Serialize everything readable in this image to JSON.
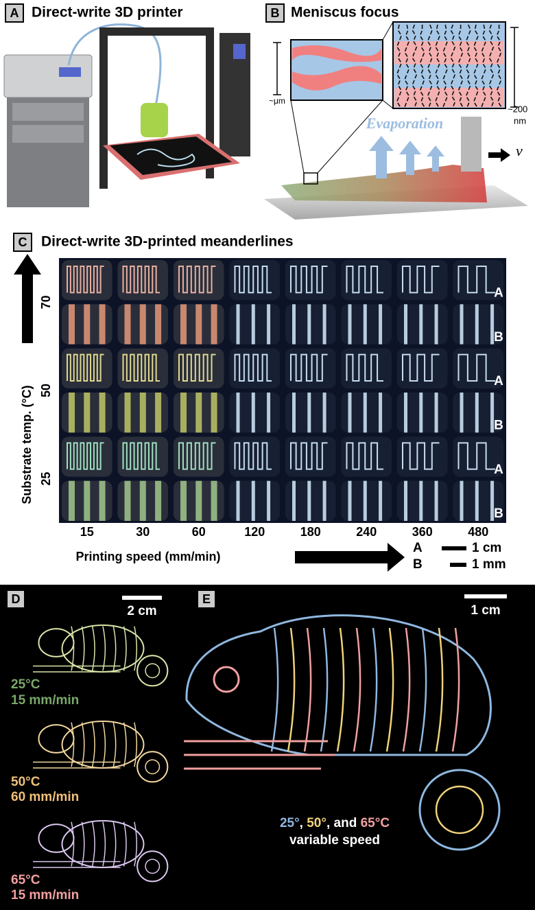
{
  "panels": {
    "a": {
      "label": "A",
      "title": "Direct-write 3D printer"
    },
    "b": {
      "label": "B",
      "title": "Meniscus focus",
      "scale_left": "~μm",
      "scale_right": "~200",
      "scale_right_unit": "nm",
      "evaporation": "Evaporation",
      "velocity": "v"
    },
    "c": {
      "label": "C",
      "title": "Direct-write 3D-printed meanderlines",
      "y_label": "Substrate temp. (°C)",
      "temperatures": [
        "70",
        "50",
        "25"
      ],
      "row_labels": [
        "A",
        "B"
      ],
      "speeds": [
        "15",
        "30",
        "60",
        "120",
        "180",
        "240",
        "360",
        "480"
      ],
      "x_label": "Printing speed (mm/min)",
      "scale_bars": [
        {
          "label": "A",
          "length": "1 cm"
        },
        {
          "label": "B",
          "length": "1 mm"
        }
      ]
    },
    "d": {
      "label": "D",
      "scale": "2 cm",
      "conditions": [
        {
          "temperature": "25°C",
          "speed": "15 mm/min"
        },
        {
          "temperature": "50°C",
          "speed": "60 mm/min"
        },
        {
          "temperature": "65°C",
          "speed": "15 mm/min"
        }
      ]
    },
    "e": {
      "label": "E",
      "scale": "1 cm",
      "caption_parts": [
        "25°",
        ", ",
        "50°",
        ", and ",
        "65°C"
      ],
      "caption_line2": "variable speed"
    }
  }
}
